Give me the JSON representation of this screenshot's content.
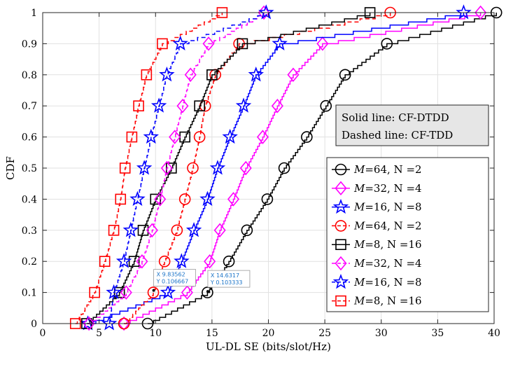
{
  "chart_data": {
    "type": "line",
    "title": "",
    "xlabel": "UL-DL SE (bits/slot/Hz)",
    "ylabel": "CDF",
    "xlim": [
      0,
      40
    ],
    "ylim": [
      0,
      1
    ],
    "xticks": [
      0,
      5,
      10,
      15,
      20,
      25,
      30,
      35,
      40
    ],
    "yticks": [
      0,
      0.1,
      0.2,
      0.3,
      0.4,
      0.5,
      0.6,
      0.7,
      0.8,
      0.9,
      1
    ],
    "grid": true,
    "legend_position": "right",
    "annotation": {
      "line1": "Solid line: CF-DTDD",
      "line2": "Dashed line: CF-TDD"
    },
    "datatips": [
      {
        "x_label": "X 9.83562",
        "y_label": "Y 0.106667",
        "x": 9.83562,
        "y": 0.106667
      },
      {
        "x_label": "X 14.6317",
        "y_label": "Y 0.103333",
        "x": 14.6317,
        "y": 0.103333
      }
    ],
    "series": [
      {
        "name_main": "M",
        "name_rest": "=64,  N =2",
        "style": "solid",
        "color": "#000000",
        "marker": "circle",
        "markers": [
          [
            9.3,
            0
          ],
          [
            14.6,
            0.1
          ],
          [
            16.5,
            0.2
          ],
          [
            18.1,
            0.3
          ],
          [
            19.9,
            0.4
          ],
          [
            21.4,
            0.5
          ],
          [
            23.4,
            0.6
          ],
          [
            25.1,
            0.7
          ],
          [
            26.8,
            0.8
          ],
          [
            30.5,
            0.9
          ],
          [
            40.2,
            1.0
          ]
        ]
      },
      {
        "name_main": "M",
        "name_rest": "=32,  N =4",
        "style": "solid",
        "color": "#ff00ff",
        "marker": "diamond",
        "markers": [
          [
            7.2,
            0
          ],
          [
            12.8,
            0.1
          ],
          [
            14.8,
            0.2
          ],
          [
            15.7,
            0.3
          ],
          [
            16.9,
            0.4
          ],
          [
            18.0,
            0.5
          ],
          [
            19.5,
            0.6
          ],
          [
            20.8,
            0.7
          ],
          [
            22.2,
            0.8
          ],
          [
            24.8,
            0.9
          ],
          [
            38.8,
            1.0
          ]
        ]
      },
      {
        "name_main": "M",
        "name_rest": "=16,  N =8",
        "style": "solid",
        "color": "#0000ff",
        "marker": "star",
        "markers": [
          [
            4.0,
            0
          ],
          [
            11.1,
            0.1
          ],
          [
            12.3,
            0.2
          ],
          [
            13.4,
            0.3
          ],
          [
            14.6,
            0.4
          ],
          [
            15.5,
            0.5
          ],
          [
            16.6,
            0.6
          ],
          [
            17.8,
            0.7
          ],
          [
            18.9,
            0.8
          ],
          [
            21.0,
            0.9
          ],
          [
            37.3,
            1.0
          ]
        ]
      },
      {
        "name_main": "M",
        "name_rest": "=64,  N =2",
        "style": "dashed",
        "color": "#ff0000",
        "marker": "circle",
        "markers": [
          [
            7.2,
            0
          ],
          [
            9.8,
            0.1
          ],
          [
            10.8,
            0.2
          ],
          [
            11.9,
            0.3
          ],
          [
            12.6,
            0.4
          ],
          [
            13.3,
            0.5
          ],
          [
            13.9,
            0.6
          ],
          [
            14.4,
            0.7
          ],
          [
            15.3,
            0.8
          ],
          [
            17.4,
            0.9
          ],
          [
            30.8,
            1.0
          ]
        ]
      },
      {
        "name_main": "M",
        "name_rest": "=8,  N =16",
        "style": "solid",
        "color": "#000000",
        "marker": "square",
        "markers": [
          [
            3.9,
            0
          ],
          [
            6.8,
            0.1
          ],
          [
            8.1,
            0.2
          ],
          [
            8.9,
            0.3
          ],
          [
            10.0,
            0.4
          ],
          [
            11.4,
            0.5
          ],
          [
            12.6,
            0.6
          ],
          [
            13.9,
            0.7
          ],
          [
            15.0,
            0.8
          ],
          [
            17.7,
            0.9
          ],
          [
            29.0,
            1.0
          ]
        ]
      },
      {
        "name_main": "M",
        "name_rest": "=32,  N =4",
        "style": "dashed",
        "color": "#ff00ff",
        "marker": "diamond",
        "markers": [
          [
            4.1,
            0
          ],
          [
            7.4,
            0.1
          ],
          [
            8.8,
            0.2
          ],
          [
            9.7,
            0.3
          ],
          [
            10.4,
            0.4
          ],
          [
            11.0,
            0.5
          ],
          [
            11.7,
            0.6
          ],
          [
            12.4,
            0.7
          ],
          [
            13.1,
            0.8
          ],
          [
            14.7,
            0.9
          ],
          [
            19.6,
            1.0
          ]
        ]
      },
      {
        "name_main": "M",
        "name_rest": "=16,  N =8",
        "style": "dashed",
        "color": "#0000ff",
        "marker": "star",
        "markers": [
          [
            5.9,
            0
          ],
          [
            6.3,
            0.1
          ],
          [
            7.2,
            0.2
          ],
          [
            7.8,
            0.3
          ],
          [
            8.4,
            0.4
          ],
          [
            9.0,
            0.5
          ],
          [
            9.6,
            0.6
          ],
          [
            10.3,
            0.7
          ],
          [
            11.0,
            0.8
          ],
          [
            12.2,
            0.9
          ],
          [
            19.8,
            1.0
          ]
        ]
      },
      {
        "name_main": "M",
        "name_rest": "=8,  N =16",
        "style": "dashed",
        "color": "#ff0000",
        "marker": "square",
        "markers": [
          [
            2.9,
            0
          ],
          [
            4.6,
            0.1
          ],
          [
            5.5,
            0.2
          ],
          [
            6.3,
            0.3
          ],
          [
            6.9,
            0.4
          ],
          [
            7.3,
            0.5
          ],
          [
            7.9,
            0.6
          ],
          [
            8.5,
            0.7
          ],
          [
            9.2,
            0.8
          ],
          [
            10.6,
            0.9
          ],
          [
            15.9,
            1.0
          ]
        ]
      }
    ]
  }
}
